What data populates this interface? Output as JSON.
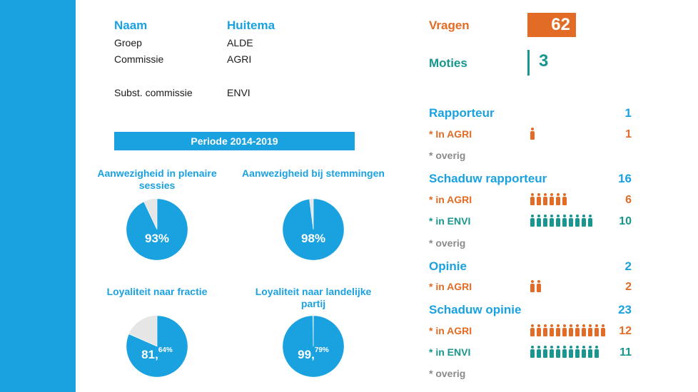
{
  "profile": {
    "naam_label": "Naam",
    "naam_value": "Huitema",
    "rows": [
      {
        "label": "Groep",
        "value": "ALDE"
      },
      {
        "label": "Commissie",
        "value": "AGRI"
      },
      {
        "label": "Subst. commissie",
        "value": "ENVI"
      }
    ]
  },
  "periode": "Periode 2014-2019",
  "pies": [
    {
      "title": "Aanwezigheid in plenaire sessies",
      "value_main": "93%",
      "value_dec": "",
      "percent": 93
    },
    {
      "title": "Aanwezigheid bij stemmingen",
      "value_main": "98%",
      "value_dec": "",
      "percent": 98
    },
    {
      "title": "Loyaliteit naar fractie",
      "value_main": "81,",
      "value_dec": "64%",
      "percent": 81.64
    },
    {
      "title": "Loyaliteit naar landelijke partij",
      "value_main": "99,",
      "value_dec": "79%",
      "percent": 99.79
    }
  ],
  "vragen": {
    "label": "Vragen",
    "value": "62"
  },
  "moties": {
    "label": "Moties",
    "value": "3"
  },
  "stats": {
    "rapporteur": {
      "label": "Rapporteur",
      "total": "1",
      "agri_label": "* In AGRI",
      "agri": "1",
      "overig_label": "* overig"
    },
    "schaduw_rapporteur": {
      "label": "Schaduw rapporteur",
      "total": "16",
      "agri_label": "* in AGRI",
      "agri": "6",
      "envi_label": "* in ENVI",
      "envi": "10",
      "overig_label": "* overig"
    },
    "opinie": {
      "label": "Opinie",
      "total": "2",
      "agri_label": "* in AGRI",
      "agri": "2"
    },
    "schaduw_opinie": {
      "label": "Schaduw opinie",
      "total": "23",
      "agri_label": "* in AGRI",
      "agri": "12",
      "envi_label": "* in ENVI",
      "envi": "11",
      "overig_label": "* overig"
    }
  },
  "colors": {
    "blue": "#1aa1e0",
    "orange": "#e26b25",
    "teal": "#18968f",
    "grey": "#e6e6e6"
  }
}
